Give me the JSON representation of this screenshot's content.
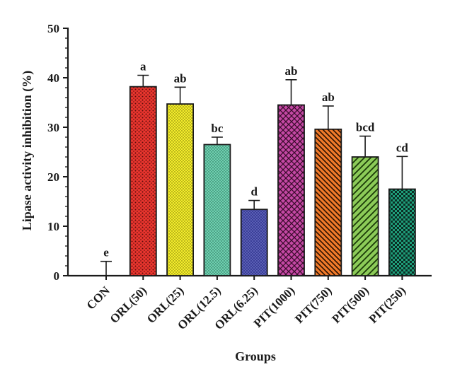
{
  "chart_data": {
    "type": "bar",
    "title": "",
    "xlabel": "Groups",
    "ylabel": "Lipase activity inhibition (%)",
    "ylim": [
      0,
      50
    ],
    "yticks": [
      0,
      10,
      20,
      30,
      40,
      50
    ],
    "grid": false,
    "categories": [
      "CON",
      "ORL(50)",
      "ORL(25)",
      "ORL(12.5)",
      "ORL(6.25)",
      "PIT(1000)",
      "PIT(750)",
      "PIT(500)",
      "PIT(250)"
    ],
    "values": [
      0,
      38.2,
      34.7,
      26.5,
      13.4,
      34.5,
      29.6,
      24.0,
      17.5
    ],
    "errors": [
      2.9,
      2.3,
      3.4,
      1.5,
      1.8,
      5.1,
      4.7,
      4.2,
      6.6
    ],
    "significance": [
      "e",
      "a",
      "ab",
      "bc",
      "d",
      "ab",
      "ab",
      "bcd",
      "cd"
    ],
    "colors": [
      "#ffffff",
      "#e8352e",
      "#f4ee2c",
      "#5ec9a8",
      "#3b3f98",
      "#bf3a9a",
      "#f07a2a",
      "#8ccb58",
      "#1f9e7a"
    ],
    "patterns": [
      "none",
      "dots",
      "dots-fine",
      "dots-fine",
      "dots-fine",
      "crosshatch",
      "diag-back",
      "diag-fwd",
      "checker"
    ]
  }
}
